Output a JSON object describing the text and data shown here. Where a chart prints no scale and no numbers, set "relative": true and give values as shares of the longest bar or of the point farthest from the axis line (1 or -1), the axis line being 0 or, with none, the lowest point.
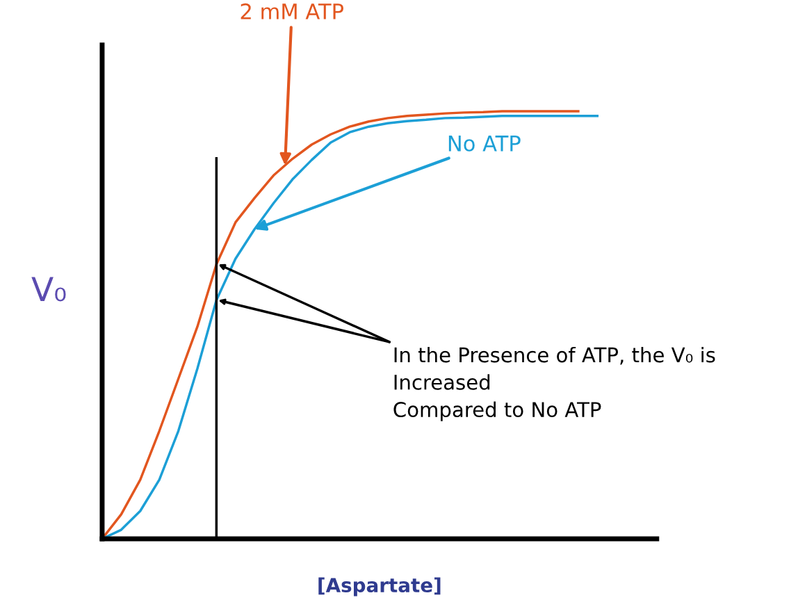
{
  "chart_data": {
    "type": "line",
    "relative": true,
    "xlabel": "[Aspartate]",
    "ylabel": "V₀",
    "tick_labels": false,
    "marker": "none",
    "line_style": "solid",
    "categories": [
      null,
      null,
      null,
      null,
      null,
      null,
      null,
      null,
      null,
      null,
      null,
      null,
      null,
      null,
      null,
      null,
      null,
      null,
      null,
      null,
      null,
      null,
      null,
      null,
      null,
      null,
      null
    ],
    "series": [
      {
        "name": "2 mM ATP",
        "color": "#e2561f",
        "values": [
          0,
          0.057,
          0.138,
          0.252,
          0.374,
          0.496,
          0.642,
          0.74,
          0.797,
          0.85,
          0.889,
          0.922,
          0.946,
          0.964,
          0.976,
          0.984,
          0.989,
          0.992,
          0.995,
          0.997,
          0.998,
          1,
          1,
          1,
          1,
          1,
          null
        ]
      },
      {
        "name": "No ATP",
        "color": "#1c9fd6",
        "values": [
          0,
          0.021,
          0.065,
          0.138,
          0.252,
          0.398,
          0.558,
          0.655,
          0.724,
          0.785,
          0.841,
          0.886,
          0.927,
          0.951,
          0.964,
          0.972,
          0.977,
          0.98,
          0.984,
          0.985,
          0.987,
          0.989,
          0.989,
          0.989,
          0.989,
          0.989,
          0.989
        ]
      }
    ],
    "annotations": [
      "In the Presence of ATP, the V₀ is\nIncreased\nCompared to No ATP"
    ]
  }
}
